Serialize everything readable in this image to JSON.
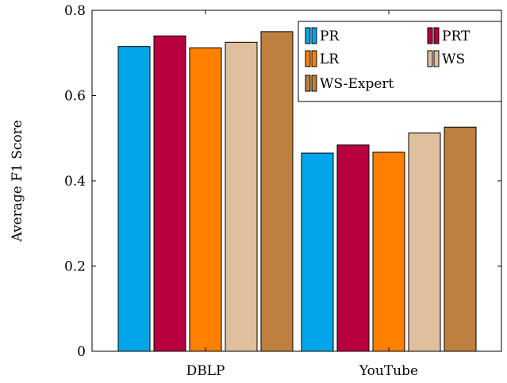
{
  "chart_data": {
    "type": "bar",
    "title": "",
    "xlabel": "",
    "ylabel": "Average F1 Score",
    "ylim": [
      0,
      0.8
    ],
    "yticks": [
      "0",
      "0.2",
      "0.4",
      "0.6",
      "0.8"
    ],
    "categories": [
      "DBLP",
      "YouTube"
    ],
    "grid": false,
    "legend_position": "top-right",
    "series": [
      {
        "name": "PR",
        "color": "#00a6e9",
        "values": [
          0.715,
          0.465
        ]
      },
      {
        "name": "PRT",
        "color": "#b8003e",
        "values": [
          0.74,
          0.484
        ]
      },
      {
        "name": "LR",
        "color": "#ff7f00",
        "values": [
          0.712,
          0.467
        ]
      },
      {
        "name": "WS",
        "color": "#e0bf9f",
        "values": [
          0.725,
          0.512
        ]
      },
      {
        "name": "WS-Expert",
        "color": "#bf7f3f",
        "values": [
          0.75,
          0.526
        ]
      }
    ]
  }
}
